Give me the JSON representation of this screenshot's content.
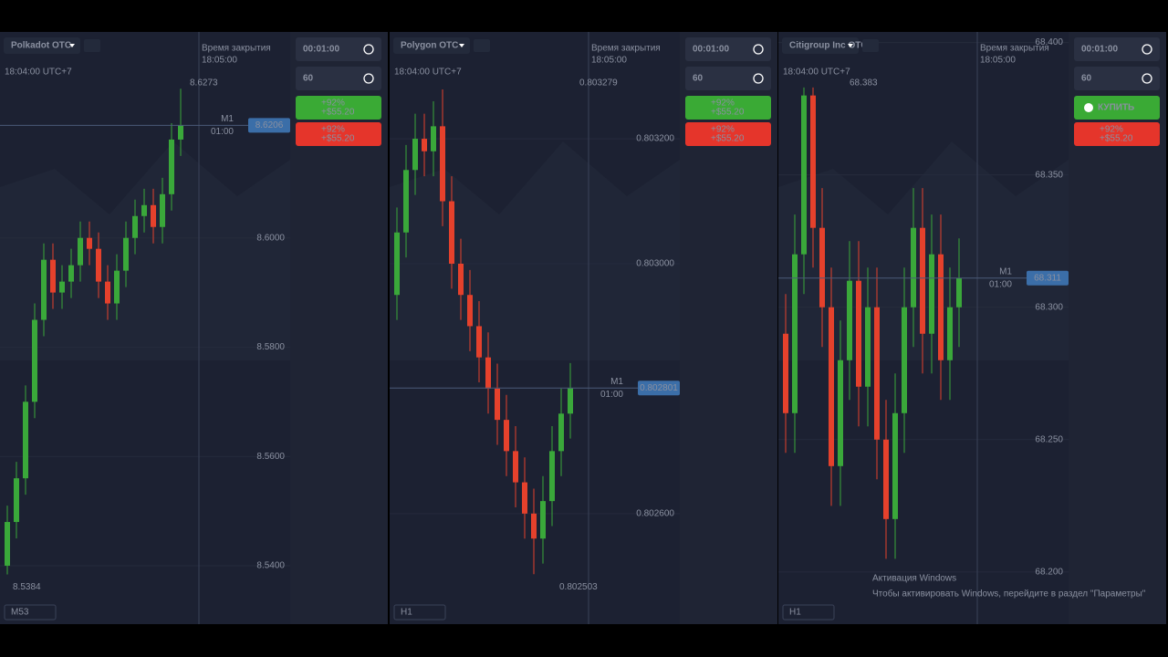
{
  "panels": [
    {
      "asset": "Polkadot OTC",
      "time": "18:04:00 UTC+7",
      "close_label": "Время закрытия",
      "close_time": "18:05:00",
      "timer": "00:01:00",
      "amount": "60",
      "up_button": "+92%",
      "up_payout": "+$55.20",
      "down_button": "+92%",
      "down_payout": "+$55.20",
      "timeframe": "M53",
      "line_label": "M1",
      "line_time": "01:00",
      "chart_data": {
        "type": "candlestick",
        "ylim": [
          8.5293,
          8.6377
        ],
        "yticks": [
          {
            "value": 8.6,
            "label": "8.6000"
          },
          {
            "value": 8.58,
            "label": "8.5800"
          },
          {
            "value": 8.56,
            "label": "8.5600"
          },
          {
            "value": 8.54,
            "label": "8.5400"
          }
        ],
        "high_label": 8.6273,
        "low_label": 8.5384,
        "current": 8.6206,
        "open": [
          8.54,
          8.548,
          8.556,
          8.57,
          8.585,
          8.596,
          8.59,
          8.592,
          8.595,
          8.6,
          8.598,
          8.592,
          8.588,
          8.594,
          8.6,
          8.604,
          8.606,
          8.602,
          8.608,
          8.618
        ],
        "close": [
          8.548,
          8.556,
          8.57,
          8.585,
          8.596,
          8.59,
          8.592,
          8.595,
          8.6,
          8.598,
          8.592,
          8.588,
          8.594,
          8.6,
          8.604,
          8.606,
          8.602,
          8.608,
          8.618,
          8.6206
        ],
        "high": [
          8.551,
          8.559,
          8.573,
          8.588,
          8.599,
          8.599,
          8.595,
          8.598,
          8.603,
          8.603,
          8.601,
          8.595,
          8.597,
          8.603,
          8.607,
          8.609,
          8.609,
          8.611,
          8.621,
          8.6273
        ],
        "low": [
          8.5384,
          8.545,
          8.553,
          8.567,
          8.582,
          8.587,
          8.587,
          8.589,
          8.592,
          8.595,
          8.589,
          8.585,
          8.585,
          8.591,
          8.597,
          8.601,
          8.599,
          8.599,
          8.605,
          8.615
        ]
      }
    },
    {
      "asset": "Polygon OTC",
      "time": "18:04:00 UTC+7",
      "close_label": "Время закрытия",
      "close_time": "18:05:00",
      "timer": "00:01:00",
      "amount": "60",
      "up_button": "+92%",
      "up_payout": "+$55.20",
      "down_button": "+92%",
      "down_payout": "+$55.20",
      "timeframe": "H1",
      "line_label": "M1",
      "line_time": "01:00",
      "chart_data": {
        "type": "candlestick",
        "ylim": [
          0.802423,
          0.803371
        ],
        "yticks": [
          {
            "value": 0.8032,
            "label": "0.803200"
          },
          {
            "value": 0.803,
            "label": "0.803000"
          },
          {
            "value": 0.8026,
            "label": "0.802600"
          }
        ],
        "high_label": 0.803279,
        "low_label": 0.802503,
        "current": 0.802801,
        "open": [
          0.80295,
          0.80305,
          0.80315,
          0.8032,
          0.80318,
          0.80322,
          0.8031,
          0.803,
          0.80295,
          0.8029,
          0.80285,
          0.8028,
          0.80275,
          0.8027,
          0.80265,
          0.8026,
          0.80256,
          0.80262,
          0.8027,
          0.80276
        ],
        "close": [
          0.80305,
          0.80315,
          0.8032,
          0.80318,
          0.80322,
          0.8031,
          0.803,
          0.80295,
          0.8029,
          0.80285,
          0.8028,
          0.80275,
          0.8027,
          0.80265,
          0.8026,
          0.80256,
          0.80262,
          0.8027,
          0.80276,
          0.802801
        ],
        "high": [
          0.80309,
          0.80319,
          0.80324,
          0.80324,
          0.80326,
          0.803279,
          0.80314,
          0.80304,
          0.80299,
          0.80294,
          0.80289,
          0.80284,
          0.80279,
          0.80274,
          0.80269,
          0.80264,
          0.80266,
          0.80274,
          0.8028,
          0.802841
        ],
        "low": [
          0.80291,
          0.80301,
          0.80311,
          0.80314,
          0.80314,
          0.80306,
          0.80296,
          0.80291,
          0.80286,
          0.80281,
          0.80276,
          0.80271,
          0.80266,
          0.80261,
          0.80256,
          0.802503,
          0.80252,
          0.80258,
          0.80266,
          0.80272
        ]
      }
    },
    {
      "asset": "Citigroup Inc OTC",
      "time": "18:04:00 UTC+7",
      "close_label": "Время закрытия",
      "close_time": "18:05:00",
      "timer": "00:01:00",
      "amount": "60",
      "up_button": "КУПИТЬ",
      "down_button": "+92%",
      "down_payout": "+$55.20",
      "timeframe": "H1",
      "line_label": "M1",
      "line_time": "01:00",
      "chart_data": {
        "type": "candlestick",
        "ylim": [
          68.1803,
          68.404
        ],
        "yticks": [
          {
            "value": 68.4,
            "label": "68.400"
          },
          {
            "value": 68.35,
            "label": "68.350"
          },
          {
            "value": 68.3,
            "label": "68.300"
          },
          {
            "value": 68.25,
            "label": "68.250"
          },
          {
            "value": 68.2,
            "label": "68.200"
          }
        ],
        "high_label": 68.383,
        "current": 68.311,
        "open": [
          68.29,
          68.26,
          68.32,
          68.38,
          68.33,
          68.3,
          68.24,
          68.28,
          68.31,
          68.27,
          68.3,
          68.25,
          68.22,
          68.26,
          68.3,
          68.33,
          68.29,
          68.32,
          68.28,
          68.3
        ],
        "close": [
          68.26,
          68.32,
          68.38,
          68.33,
          68.3,
          68.24,
          68.28,
          68.31,
          68.27,
          68.3,
          68.25,
          68.22,
          68.26,
          68.3,
          68.33,
          68.29,
          68.32,
          68.28,
          68.3,
          68.311
        ],
        "high": [
          68.305,
          68.335,
          68.383,
          68.383,
          68.345,
          68.315,
          68.295,
          68.325,
          68.325,
          68.315,
          68.315,
          68.265,
          68.275,
          68.315,
          68.345,
          68.345,
          68.335,
          68.335,
          68.315,
          68.326
        ],
        "low": [
          68.245,
          68.245,
          68.305,
          68.315,
          68.285,
          68.225,
          68.225,
          68.265,
          68.255,
          68.255,
          68.235,
          68.205,
          68.205,
          68.245,
          68.285,
          68.275,
          68.275,
          68.265,
          68.265,
          68.285
        ]
      }
    }
  ],
  "watermark": {
    "title": "Активация Windows",
    "text": "Чтобы активировать Windows, перейдите в раздел \"Параметры\""
  }
}
